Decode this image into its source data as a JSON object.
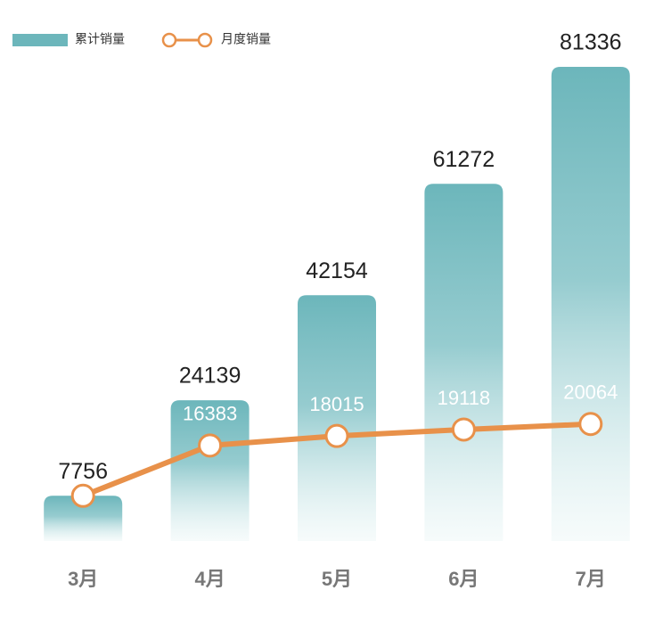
{
  "chart_data": {
    "type": "combo",
    "categories": [
      "3月",
      "4月",
      "5月",
      "6月",
      "7月"
    ],
    "series": [
      {
        "name": "累计销量",
        "type": "bar",
        "color": "#6cb6bb",
        "values": [
          7756,
          24139,
          42154,
          61272,
          81336
        ]
      },
      {
        "name": "月度销量",
        "type": "line",
        "color": "#e8914a",
        "values": [
          7756,
          16383,
          18015,
          19118,
          20064
        ]
      }
    ],
    "ylim": [
      0,
      85000
    ],
    "legend": "top-left"
  }
}
